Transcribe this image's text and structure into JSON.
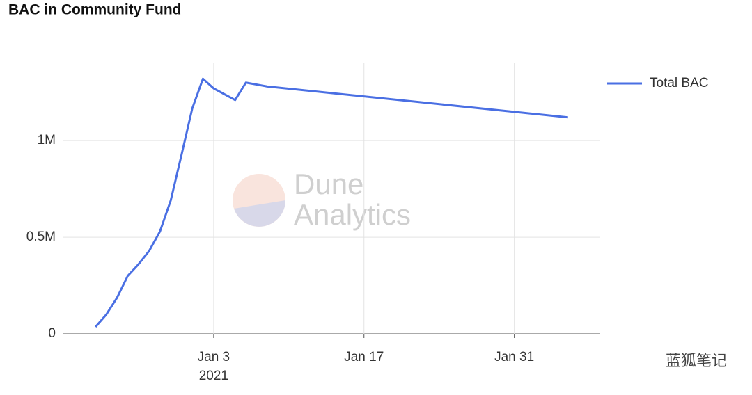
{
  "chart_data": {
    "type": "line",
    "title": "BAC in Community Fund",
    "x": [
      "2020-12-23",
      "2020-12-24",
      "2020-12-25",
      "2020-12-26",
      "2020-12-27",
      "2020-12-28",
      "2020-12-29",
      "2020-12-30",
      "2020-12-31",
      "2021-01-01",
      "2021-01-02",
      "2021-01-03",
      "2021-01-05",
      "2021-01-06",
      "2021-01-08",
      "2021-02-05"
    ],
    "series": [
      {
        "name": "Total BAC",
        "color": "#4a6fe3",
        "values": [
          36000,
          100000,
          187000,
          300000,
          360000,
          430000,
          530000,
          690000,
          925000,
          1165000,
          1320000,
          1270000,
          1210000,
          1300000,
          1280000,
          1120000
        ]
      }
    ],
    "xlim": [
      "2020-12-20",
      "2021-02-08"
    ],
    "xticks": [
      {
        "value": "2021-01-03",
        "label": "Jan 3"
      },
      {
        "value": "2021-01-17",
        "label": "Jan 17"
      },
      {
        "value": "2021-01-31",
        "label": "Jan 31"
      }
    ],
    "x_tick_year": "2021",
    "ylim": [
      0,
      1400000
    ],
    "yticks": [
      0,
      {
        "value": 500000,
        "label": "0.5M"
      },
      {
        "value": 1000000,
        "label": "1M"
      }
    ],
    "grid": true,
    "legend": "right",
    "watermark": [
      "Dune",
      "Analytics"
    ],
    "source_mark": "蓝狐笔记"
  }
}
